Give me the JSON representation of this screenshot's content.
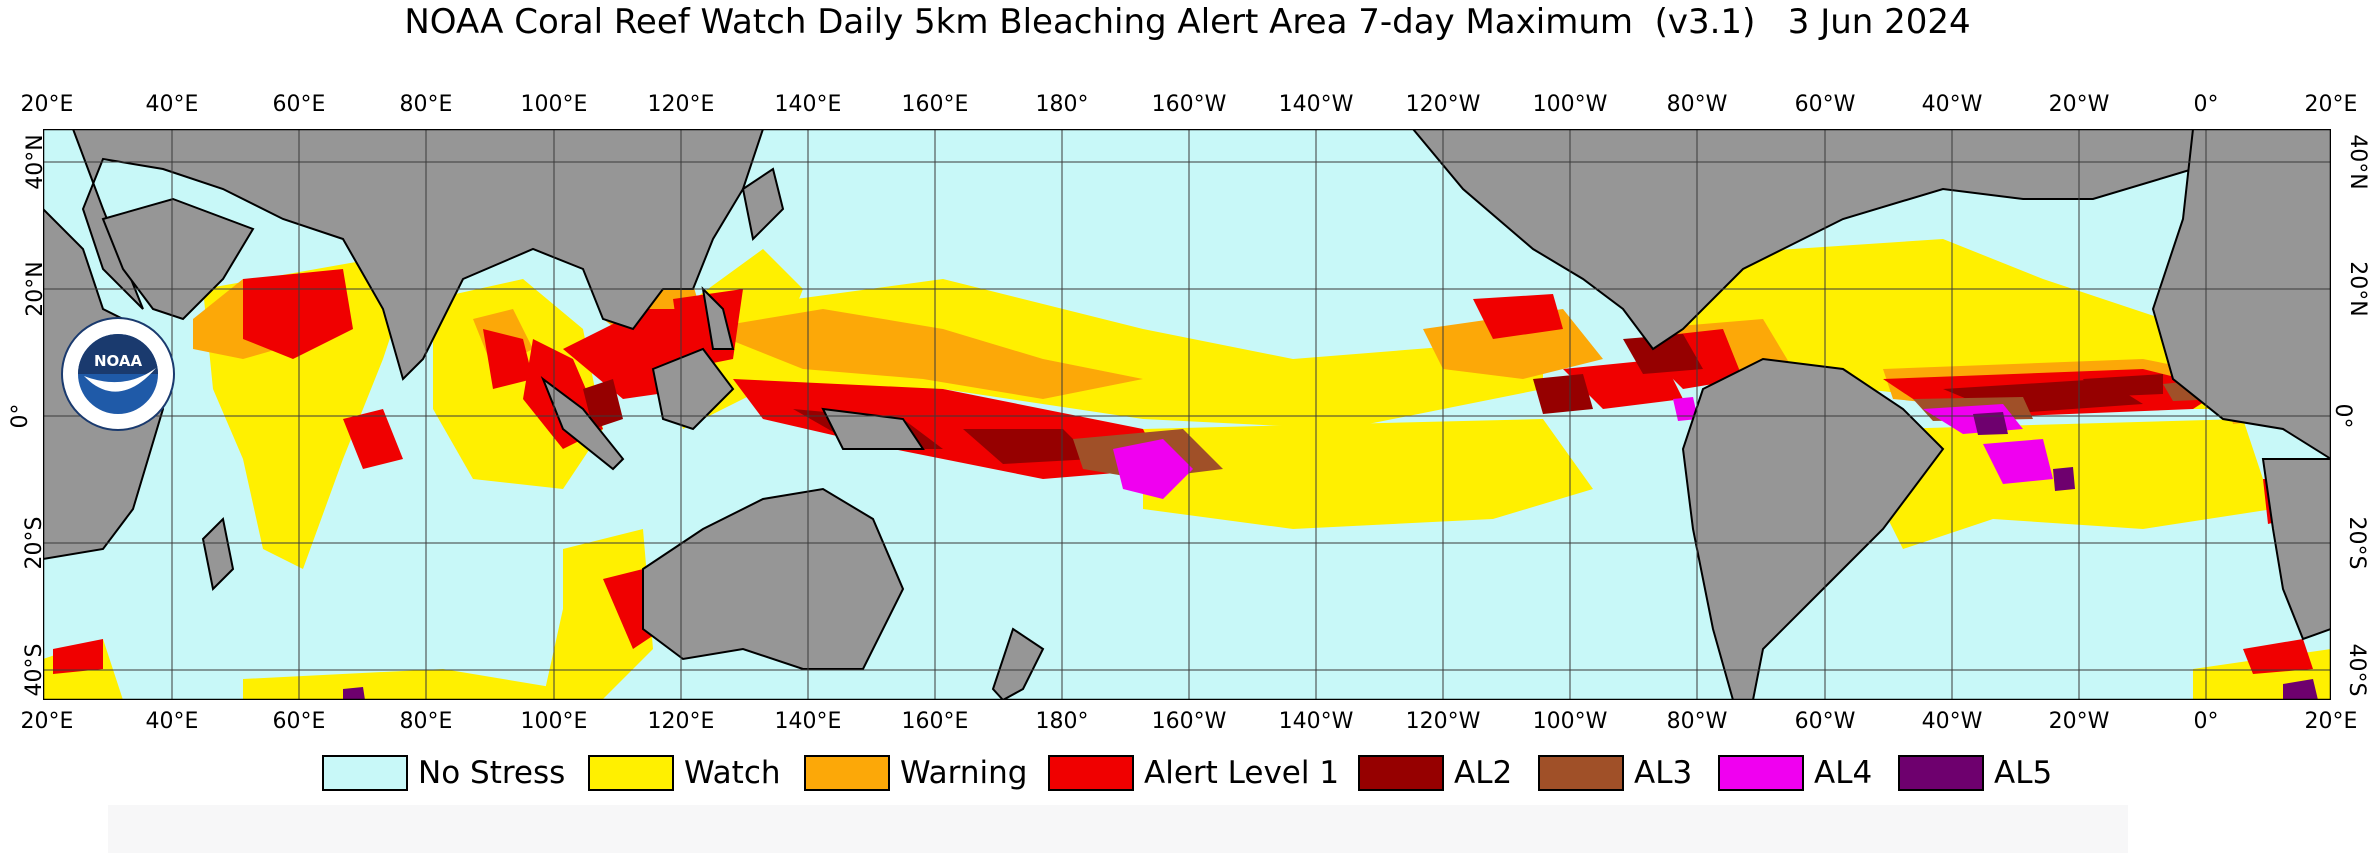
{
  "title": "NOAA Coral Reef Watch Daily 5km Bleaching Alert Area 7-day Maximum  (v3.1)   3 Jun 2024",
  "lon_labels": [
    "20°E",
    "40°E",
    "60°E",
    "80°E",
    "100°E",
    "120°E",
    "140°E",
    "160°E",
    "180°",
    "160°W",
    "140°W",
    "120°W",
    "100°W",
    "80°W",
    "60°W",
    "40°W",
    "20°W",
    "0°",
    "20°E"
  ],
  "lat_labels_left": [
    "40°N",
    "20°N",
    "0°",
    "20°S",
    "40°S"
  ],
  "lat_labels_right": [
    "40°N",
    "20°N",
    "0°",
    "20°S",
    "40°S"
  ],
  "logo": {
    "text": "NOAA",
    "ring_text": "NATIONAL OCEANIC AND ATMOSPHERIC ADMINISTRATION · U.S. DEPARTMENT OF COMMERCE"
  },
  "legend": [
    {
      "label": "No Stress",
      "color": "#c8f8f8"
    },
    {
      "label": "Watch",
      "color": "#fff000"
    },
    {
      "label": "Warning",
      "color": "#fca808"
    },
    {
      "label": "Alert Level 1",
      "color": "#f00000"
    },
    {
      "label": "AL2",
      "color": "#960000"
    },
    {
      "label": "AL3",
      "color": "#a05028"
    },
    {
      "label": "AL4",
      "color": "#f000f0"
    },
    {
      "label": "AL5",
      "color": "#6e006e"
    }
  ],
  "colors": {
    "ocean": "#c8f8f8",
    "land": "#969696",
    "grid": "#3a3a3a",
    "coast": "#000000"
  }
}
